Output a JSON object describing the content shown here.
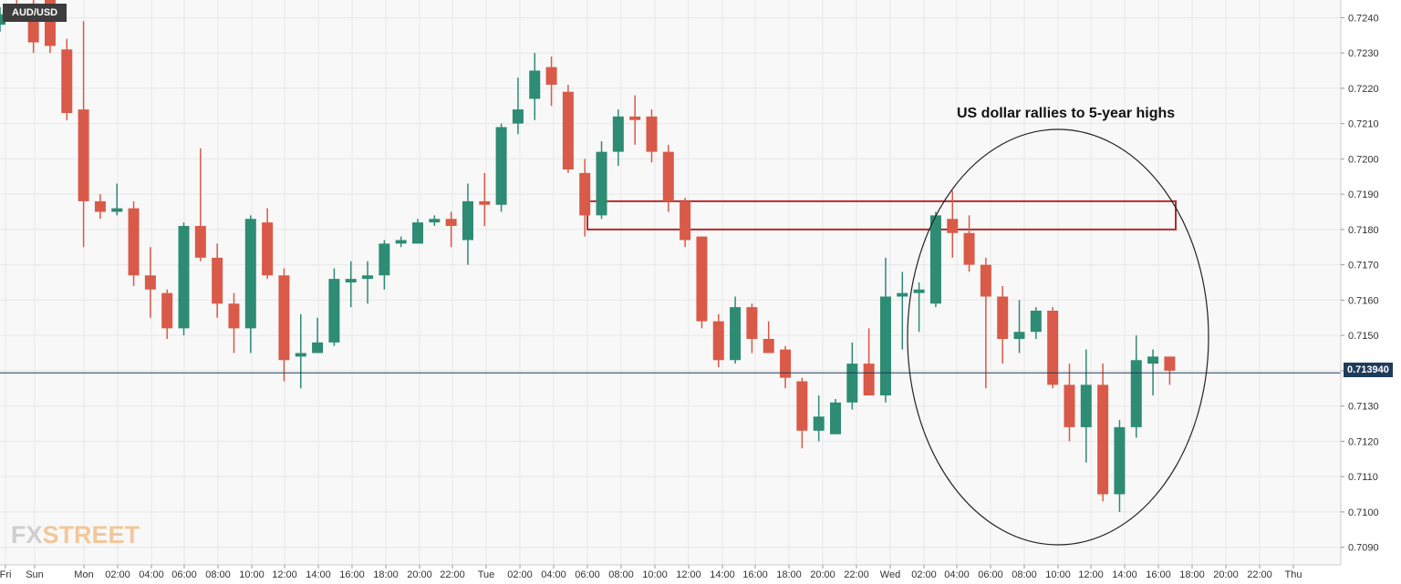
{
  "ticker": "AUD/USD",
  "annotation": "US dollar rallies to 5-year highs",
  "current_price_label": "0.713940",
  "logo": {
    "part1": "FX",
    "part2": "STREET"
  },
  "colors": {
    "up": "#2e8b74",
    "down": "#d95a48",
    "grid": "#e8e8e8",
    "box": "#b52a2a",
    "price_line": "#1f3b5a"
  },
  "chart_data": {
    "type": "candlestick",
    "title": "",
    "ylim": [
      0.7085,
      0.7245
    ],
    "y_ticks": [
      "0.7240",
      "0.7230",
      "0.7220",
      "0.7210",
      "0.7200",
      "0.7190",
      "0.7180",
      "0.7170",
      "0.7160",
      "0.7150",
      "0.7140",
      "0.7130",
      "0.7120",
      "0.7110",
      "0.7100",
      "0.7090"
    ],
    "x_tick_labels": [
      "Fri",
      "Sun",
      "Mon",
      "02:00",
      "04:00",
      "06:00",
      "08:00",
      "10:00",
      "12:00",
      "14:00",
      "16:00",
      "18:00",
      "20:00",
      "22:00",
      "Tue",
      "02:00",
      "04:00",
      "06:00",
      "08:00",
      "10:00",
      "12:00",
      "14:00",
      "16:00",
      "18:00",
      "20:00",
      "22:00",
      "Wed",
      "02:00",
      "04:00",
      "06:00",
      "08:00",
      "10:00",
      "12:00",
      "14:00",
      "16:00",
      "18:00",
      "20:00",
      "22:00",
      "Thu"
    ],
    "current_price": 0.71394,
    "resistance_zone": [
      0.718,
      0.7188
    ],
    "candles": [
      {
        "o": 0.7238,
        "h": 0.7243,
        "l": 0.7236,
        "c": 0.7241
      },
      {
        "o": 0.7243,
        "h": 0.7245,
        "l": 0.724,
        "c": 0.7241
      },
      {
        "o": 0.7244,
        "h": 0.7246,
        "l": 0.723,
        "c": 0.7233
      },
      {
        "o": 0.7245,
        "h": 0.7246,
        "l": 0.723,
        "c": 0.7232
      },
      {
        "o": 0.7231,
        "h": 0.7234,
        "l": 0.7211,
        "c": 0.7213
      },
      {
        "o": 0.7214,
        "h": 0.7239,
        "l": 0.7175,
        "c": 0.7188
      },
      {
        "o": 0.7188,
        "h": 0.719,
        "l": 0.7183,
        "c": 0.7185
      },
      {
        "o": 0.7185,
        "h": 0.7193,
        "l": 0.7184,
        "c": 0.7186
      },
      {
        "o": 0.7186,
        "h": 0.7188,
        "l": 0.7164,
        "c": 0.7167
      },
      {
        "o": 0.7167,
        "h": 0.7175,
        "l": 0.7155,
        "c": 0.7163
      },
      {
        "o": 0.7162,
        "h": 0.7163,
        "l": 0.7149,
        "c": 0.7152
      },
      {
        "o": 0.7152,
        "h": 0.7182,
        "l": 0.715,
        "c": 0.7181
      },
      {
        "o": 0.7181,
        "h": 0.7203,
        "l": 0.7171,
        "c": 0.7172
      },
      {
        "o": 0.7172,
        "h": 0.7176,
        "l": 0.7155,
        "c": 0.7159
      },
      {
        "o": 0.7159,
        "h": 0.7162,
        "l": 0.7145,
        "c": 0.7152
      },
      {
        "o": 0.7152,
        "h": 0.7184,
        "l": 0.7145,
        "c": 0.7183
      },
      {
        "o": 0.7182,
        "h": 0.7186,
        "l": 0.7166,
        "c": 0.7167
      },
      {
        "o": 0.7167,
        "h": 0.7169,
        "l": 0.7137,
        "c": 0.7143
      },
      {
        "o": 0.7144,
        "h": 0.7156,
        "l": 0.7135,
        "c": 0.7145
      },
      {
        "o": 0.7145,
        "h": 0.7155,
        "l": 0.7145,
        "c": 0.7148
      },
      {
        "o": 0.7148,
        "h": 0.7169,
        "l": 0.7147,
        "c": 0.7166
      },
      {
        "o": 0.7165,
        "h": 0.7171,
        "l": 0.7158,
        "c": 0.7166
      },
      {
        "o": 0.7166,
        "h": 0.7171,
        "l": 0.7159,
        "c": 0.7167
      },
      {
        "o": 0.7167,
        "h": 0.7177,
        "l": 0.7163,
        "c": 0.7176
      },
      {
        "o": 0.7176,
        "h": 0.7178,
        "l": 0.7175,
        "c": 0.7177
      },
      {
        "o": 0.7176,
        "h": 0.7183,
        "l": 0.7176,
        "c": 0.7182
      },
      {
        "o": 0.7182,
        "h": 0.7184,
        "l": 0.7181,
        "c": 0.7183
      },
      {
        "o": 0.7183,
        "h": 0.7185,
        "l": 0.7175,
        "c": 0.7181
      },
      {
        "o": 0.7177,
        "h": 0.7193,
        "l": 0.717,
        "c": 0.7188
      },
      {
        "o": 0.7188,
        "h": 0.7196,
        "l": 0.7181,
        "c": 0.7187
      },
      {
        "o": 0.7187,
        "h": 0.721,
        "l": 0.7185,
        "c": 0.7209
      },
      {
        "o": 0.721,
        "h": 0.7223,
        "l": 0.7207,
        "c": 0.7214
      },
      {
        "o": 0.7217,
        "h": 0.723,
        "l": 0.7211,
        "c": 0.7225
      },
      {
        "o": 0.7226,
        "h": 0.7229,
        "l": 0.7215,
        "c": 0.7221
      },
      {
        "o": 0.7219,
        "h": 0.7221,
        "l": 0.7196,
        "c": 0.7197
      },
      {
        "o": 0.7196,
        "h": 0.72,
        "l": 0.7178,
        "c": 0.7184
      },
      {
        "o": 0.7184,
        "h": 0.7205,
        "l": 0.7183,
        "c": 0.7202
      },
      {
        "o": 0.7202,
        "h": 0.7214,
        "l": 0.7198,
        "c": 0.7212
      },
      {
        "o": 0.7212,
        "h": 0.7218,
        "l": 0.7204,
        "c": 0.7211
      },
      {
        "o": 0.7212,
        "h": 0.7214,
        "l": 0.7199,
        "c": 0.7202
      },
      {
        "o": 0.7202,
        "h": 0.7204,
        "l": 0.7185,
        "c": 0.7188
      },
      {
        "o": 0.7188,
        "h": 0.7189,
        "l": 0.7175,
        "c": 0.7177
      },
      {
        "o": 0.7178,
        "h": 0.7178,
        "l": 0.7152,
        "c": 0.7154
      },
      {
        "o": 0.7154,
        "h": 0.7156,
        "l": 0.7141,
        "c": 0.7143
      },
      {
        "o": 0.7143,
        "h": 0.7161,
        "l": 0.7142,
        "c": 0.7158
      },
      {
        "o": 0.7158,
        "h": 0.7159,
        "l": 0.7145,
        "c": 0.7149
      },
      {
        "o": 0.7149,
        "h": 0.7154,
        "l": 0.7145,
        "c": 0.7145
      },
      {
        "o": 0.7146,
        "h": 0.7147,
        "l": 0.7135,
        "c": 0.7138
      },
      {
        "o": 0.7137,
        "h": 0.7138,
        "l": 0.7118,
        "c": 0.7123
      },
      {
        "o": 0.7123,
        "h": 0.7133,
        "l": 0.712,
        "c": 0.7127
      },
      {
        "o": 0.7122,
        "h": 0.7132,
        "l": 0.7122,
        "c": 0.7131
      },
      {
        "o": 0.7131,
        "h": 0.7148,
        "l": 0.7129,
        "c": 0.7142
      },
      {
        "o": 0.7142,
        "h": 0.7152,
        "l": 0.7133,
        "c": 0.7133
      },
      {
        "o": 0.7133,
        "h": 0.7172,
        "l": 0.7131,
        "c": 0.7161
      },
      {
        "o": 0.7161,
        "h": 0.7168,
        "l": 0.7146,
        "c": 0.7162
      },
      {
        "o": 0.7162,
        "h": 0.7165,
        "l": 0.7151,
        "c": 0.7163
      },
      {
        "o": 0.7159,
        "h": 0.7185,
        "l": 0.7158,
        "c": 0.7184
      },
      {
        "o": 0.7183,
        "h": 0.7191,
        "l": 0.7172,
        "c": 0.7179
      },
      {
        "o": 0.7179,
        "h": 0.7184,
        "l": 0.7168,
        "c": 0.717
      },
      {
        "o": 0.717,
        "h": 0.7172,
        "l": 0.7135,
        "c": 0.7161
      },
      {
        "o": 0.7161,
        "h": 0.7164,
        "l": 0.7142,
        "c": 0.7149
      },
      {
        "o": 0.7149,
        "h": 0.716,
        "l": 0.7145,
        "c": 0.7151
      },
      {
        "o": 0.7151,
        "h": 0.7158,
        "l": 0.7149,
        "c": 0.7157
      },
      {
        "o": 0.7157,
        "h": 0.7158,
        "l": 0.7135,
        "c": 0.7136
      },
      {
        "o": 0.7136,
        "h": 0.7142,
        "l": 0.712,
        "c": 0.7124
      },
      {
        "o": 0.7124,
        "h": 0.7146,
        "l": 0.7114,
        "c": 0.7136
      },
      {
        "o": 0.7136,
        "h": 0.7142,
        "l": 0.7103,
        "c": 0.7105
      },
      {
        "o": 0.7105,
        "h": 0.7126,
        "l": 0.71,
        "c": 0.7124
      },
      {
        "o": 0.7124,
        "h": 0.715,
        "l": 0.7121,
        "c": 0.7143
      },
      {
        "o": 0.7142,
        "h": 0.7146,
        "l": 0.7133,
        "c": 0.7144
      },
      {
        "o": 0.7144,
        "h": 0.7144,
        "l": 0.7136,
        "c": 0.714
      }
    ]
  }
}
